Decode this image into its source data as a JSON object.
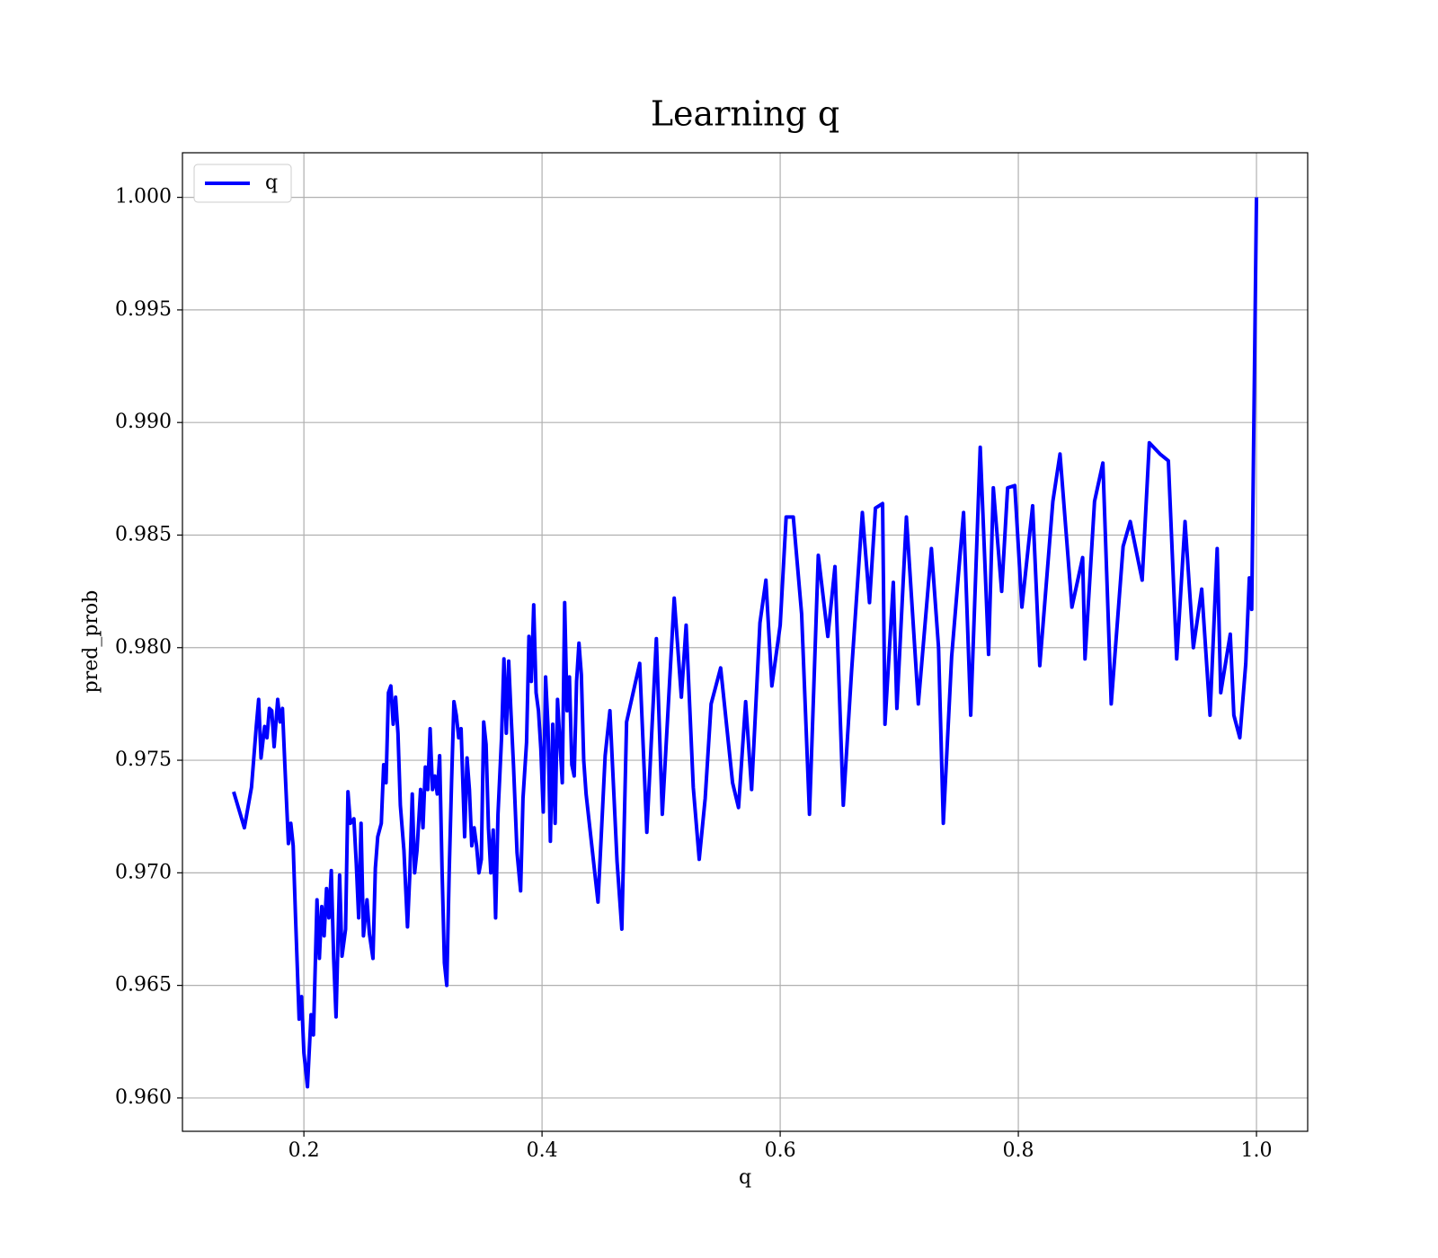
{
  "chart_data": {
    "type": "line",
    "title": "Learning q",
    "xlabel": "q",
    "ylabel": "pred_prob",
    "xlim": [
      0.098,
      1.043
    ],
    "ylim": [
      0.95852,
      1.00198
    ],
    "xticks": [
      0.2,
      0.4,
      0.6,
      0.8,
      {
        "value": 1.0,
        "label": "1.0"
      }
    ],
    "yticks": [
      {
        "value": 0.96,
        "label": "0.960"
      },
      0.965,
      {
        "value": 0.97,
        "label": "0.970"
      },
      0.975,
      {
        "value": 0.98,
        "label": "0.980"
      },
      0.985,
      {
        "value": 0.99,
        "label": "0.990"
      },
      0.995,
      {
        "value": 1.0,
        "label": "1.000"
      }
    ],
    "grid": true,
    "legend": "upper left",
    "x": [
      0.141,
      0.15,
      0.156,
      0.16,
      0.162,
      0.164,
      0.167,
      0.169,
      0.171,
      0.173,
      0.175,
      0.178,
      0.18,
      0.182,
      0.184,
      0.187,
      0.189,
      0.191,
      0.193,
      0.196,
      0.198,
      0.2,
      0.203,
      0.206,
      0.208,
      0.211,
      0.213,
      0.215,
      0.217,
      0.219,
      0.221,
      0.223,
      0.225,
      0.227,
      0.23,
      0.232,
      0.235,
      0.237,
      0.239,
      0.242,
      0.244,
      0.246,
      0.248,
      0.25,
      0.253,
      0.255,
      0.258,
      0.26,
      0.262,
      0.265,
      0.267,
      0.269,
      0.271,
      0.273,
      0.275,
      0.277,
      0.279,
      0.281,
      0.284,
      0.287,
      0.289,
      0.291,
      0.293,
      0.295,
      0.298,
      0.3,
      0.302,
      0.304,
      0.306,
      0.308,
      0.31,
      0.312,
      0.314,
      0.316,
      0.318,
      0.32,
      0.322,
      0.324,
      0.326,
      0.328,
      0.33,
      0.332,
      0.335,
      0.337,
      0.339,
      0.341,
      0.343,
      0.345,
      0.347,
      0.349,
      0.351,
      0.353,
      0.355,
      0.357,
      0.359,
      0.361,
      0.363,
      0.366,
      0.368,
      0.37,
      0.372,
      0.374,
      0.376,
      0.379,
      0.382,
      0.384,
      0.387,
      0.389,
      0.391,
      0.393,
      0.395,
      0.397,
      0.399,
      0.401,
      0.403,
      0.405,
      0.407,
      0.409,
      0.411,
      0.413,
      0.415,
      0.417,
      0.419,
      0.421,
      0.423,
      0.425,
      0.427,
      0.429,
      0.431,
      0.433,
      0.435,
      0.437,
      0.447,
      0.453,
      0.457,
      0.463,
      0.467,
      0.471,
      0.482,
      0.488,
      0.496,
      0.501,
      0.511,
      0.517,
      0.521,
      0.527,
      0.532,
      0.537,
      0.542,
      0.55,
      0.56,
      0.565,
      0.571,
      0.576,
      0.583,
      0.588,
      0.593,
      0.6,
      0.605,
      0.611,
      0.618,
      0.6246,
      0.632,
      0.64,
      0.646,
      0.653,
      0.66,
      0.669,
      0.675,
      0.68,
      0.686,
      0.688,
      0.695,
      0.698,
      0.706,
      0.716,
      0.727,
      0.733,
      0.737,
      0.744,
      0.754,
      0.76,
      0.768,
      0.775,
      0.779,
      0.786,
      0.791,
      0.797,
      0.803,
      0.812,
      0.818,
      0.829,
      0.835,
      0.845,
      0.854,
      0.856,
      0.864,
      0.871,
      0.878,
      0.888,
      0.894,
      0.904,
      0.91,
      0.919,
      0.926,
      0.933,
      0.94,
      0.947,
      0.954,
      0.961,
      0.967,
      0.97,
      0.978,
      0.981,
      0.986,
      0.991,
      0.994,
      0.996,
      1.0
    ],
    "series": [
      {
        "name": "q",
        "color": "#0000ff",
        "values": [
          0.9736,
          0.972,
          0.9738,
          0.9765,
          0.9777,
          0.9751,
          0.9765,
          0.976,
          0.9773,
          0.9772,
          0.9756,
          0.9777,
          0.9767,
          0.9773,
          0.9748,
          0.9713,
          0.9722,
          0.9712,
          0.968,
          0.9635,
          0.9645,
          0.962,
          0.9605,
          0.9637,
          0.9628,
          0.9688,
          0.9662,
          0.9685,
          0.9672,
          0.9693,
          0.968,
          0.9701,
          0.9662,
          0.9636,
          0.9699,
          0.9663,
          0.9675,
          0.9736,
          0.9722,
          0.9724,
          0.9704,
          0.968,
          0.9722,
          0.9672,
          0.9688,
          0.9673,
          0.9662,
          0.9702,
          0.9716,
          0.9722,
          0.9748,
          0.974,
          0.978,
          0.9783,
          0.9766,
          0.9778,
          0.9762,
          0.973,
          0.971,
          0.9676,
          0.97,
          0.9735,
          0.97,
          0.971,
          0.9737,
          0.972,
          0.9747,
          0.9737,
          0.9764,
          0.9737,
          0.9743,
          0.9735,
          0.9752,
          0.9702,
          0.966,
          0.965,
          0.97,
          0.974,
          0.9776,
          0.977,
          0.976,
          0.9764,
          0.9716,
          0.9751,
          0.9737,
          0.9712,
          0.972,
          0.9712,
          0.97,
          0.9706,
          0.9767,
          0.9757,
          0.972,
          0.97,
          0.9719,
          0.968,
          0.9726,
          0.976,
          0.9795,
          0.9762,
          0.9794,
          0.977,
          0.9748,
          0.9709,
          0.9692,
          0.9733,
          0.9758,
          0.9805,
          0.9785,
          0.9819,
          0.978,
          0.9772,
          0.9755,
          0.9727,
          0.9787,
          0.9765,
          0.9714,
          0.9766,
          0.9722,
          0.9777,
          0.9758,
          0.974,
          0.982,
          0.9772,
          0.9787,
          0.9748,
          0.9743,
          0.9785,
          0.9802,
          0.9788,
          0.975,
          0.9735,
          0.9687,
          0.9752,
          0.9772,
          0.9705,
          0.9675,
          0.9767,
          0.9793,
          0.9718,
          0.9804,
          0.9726,
          0.9822,
          0.9778,
          0.981,
          0.9738,
          0.9706,
          0.9733,
          0.9775,
          0.9791,
          0.974,
          0.9729,
          0.9776,
          0.9737,
          0.9811,
          0.983,
          0.9783,
          0.981,
          0.9858,
          0.9858,
          0.9815,
          0.9726,
          0.9841,
          0.9805,
          0.9836,
          0.973,
          0.979,
          0.986,
          0.982,
          0.9862,
          0.9864,
          0.9766,
          0.9829,
          0.9773,
          0.9858,
          0.9775,
          0.9844,
          0.98,
          0.9722,
          0.9796,
          0.986,
          0.977,
          0.9889,
          0.9797,
          0.9871,
          0.9825,
          0.9871,
          0.9872,
          0.9818,
          0.9863,
          0.9792,
          0.9865,
          0.9886,
          0.9818,
          0.984,
          0.9795,
          0.9865,
          0.9882,
          0.9775,
          0.9845,
          0.9856,
          0.983,
          0.9891,
          0.9886,
          0.9883,
          0.9795,
          0.9856,
          0.98,
          0.9826,
          0.977,
          0.9844,
          0.978,
          0.9806,
          0.977,
          0.976,
          0.9793,
          0.9831,
          0.9817,
          1.0
        ]
      }
    ]
  }
}
